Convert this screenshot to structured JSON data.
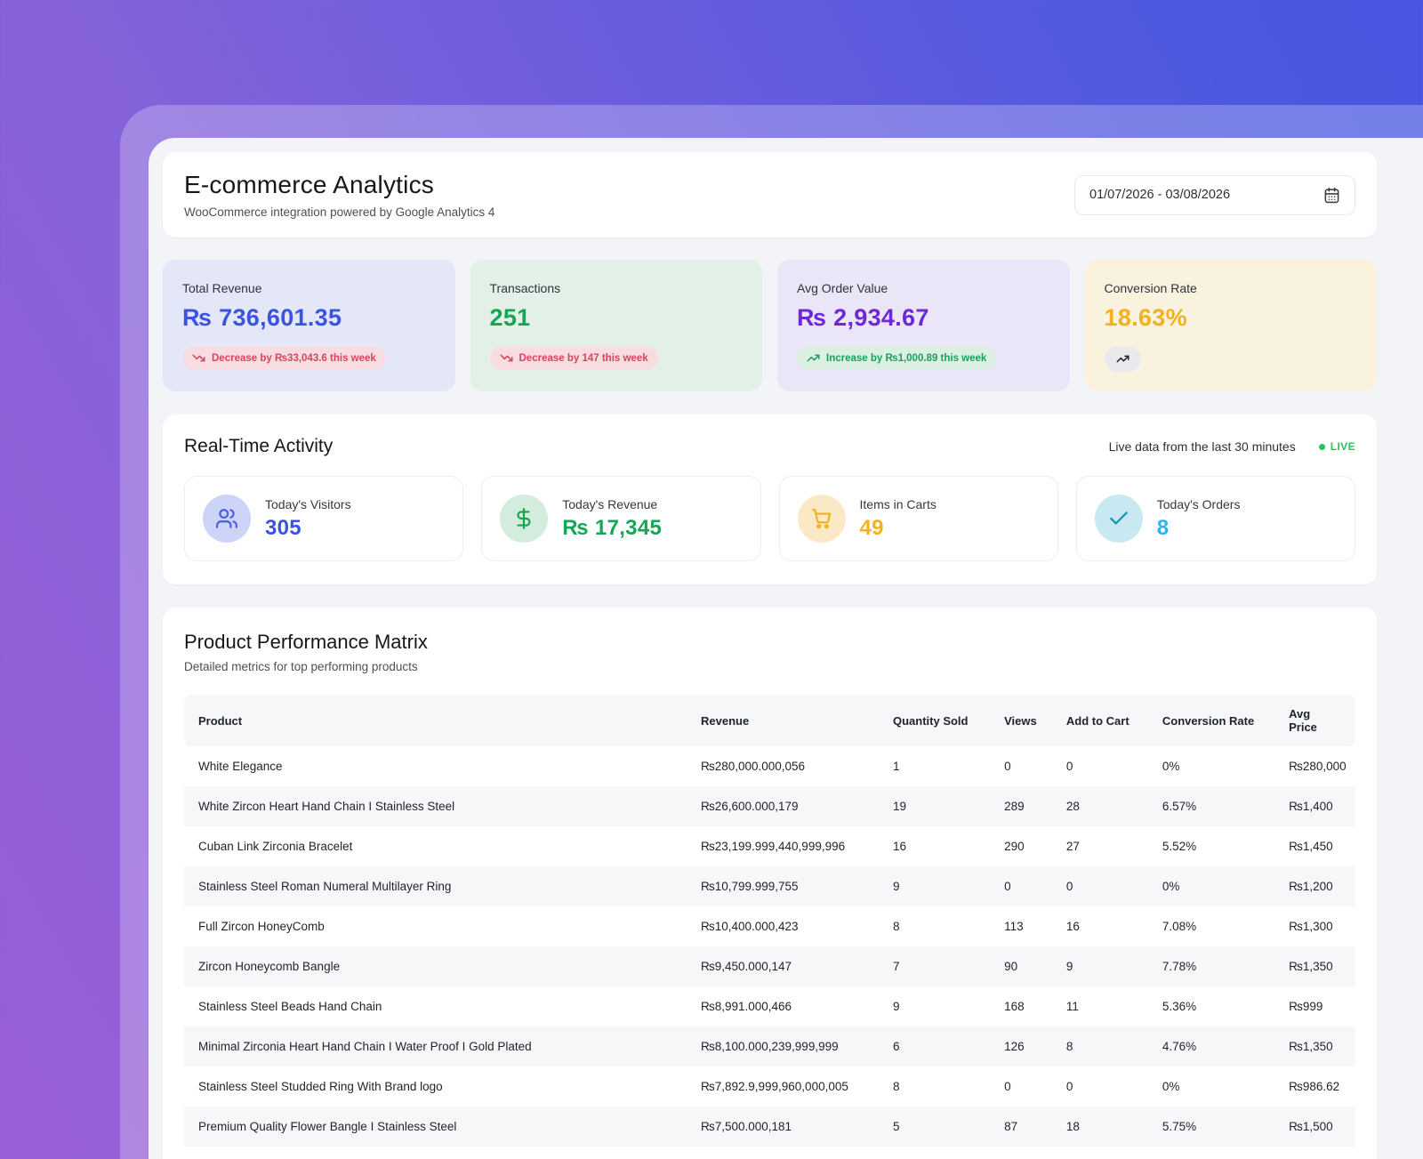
{
  "header": {
    "title": "E-commerce Analytics",
    "subtitle": "WooCommerce integration powered by Google Analytics 4",
    "date_range": "01/07/2026 - 03/08/2026"
  },
  "stats": [
    {
      "label": "Total Revenue",
      "value": "₨ 736,601.35",
      "value_color": "#3a53e3",
      "card_bg": "#e4e7f8",
      "badge": {
        "text": "Decrease by ₨33,043.6 this week",
        "direction": "down",
        "bg": "#f7dce2",
        "color": "#d5455a"
      }
    },
    {
      "label": "Transactions",
      "value": "251",
      "value_color": "#17a656",
      "card_bg": "#e2f0e8",
      "badge": {
        "text": "Decrease by 147 this week",
        "direction": "down",
        "bg": "#f7dce2",
        "color": "#d5455a"
      }
    },
    {
      "label": "Avg Order Value",
      "value": "₨ 2,934.67",
      "value_color": "#6d28d9",
      "card_bg": "#eae6f7",
      "badge": {
        "text": "Increase by ₨1,000.89 this week",
        "direction": "up",
        "bg": "#dbefe2",
        "color": "#1c9f5c"
      }
    },
    {
      "label": "Conversion Rate",
      "value": "18.63%",
      "value_color": "#f2b11d",
      "card_bg": "#f8f2de",
      "badge": {
        "text": "",
        "direction": "up",
        "bg": "#e9eaec",
        "color": "#1e2227"
      }
    }
  ],
  "realtime": {
    "title": "Real-Time Activity",
    "live_text": "Live data from the last 30 minutes",
    "live_badge": "LIVE",
    "live_color": "#22c55e",
    "cards": [
      {
        "label": "Today's Visitors",
        "value": "305",
        "icon": "users-icon",
        "icon_color": "#4a5de2",
        "circle_bg": "#ccd4f8",
        "value_color": "#3a53e3"
      },
      {
        "label": "Today's Revenue",
        "value": "₨ 17,345",
        "icon": "dollar-icon",
        "icon_color": "#17a34a",
        "circle_bg": "#d3ecde",
        "value_color": "#17a656"
      },
      {
        "label": "Items in Carts",
        "value": "49",
        "icon": "cart-icon",
        "icon_color": "#f2b11d",
        "circle_bg": "#fbe9c6",
        "value_color": "#f2b11d"
      },
      {
        "label": "Today's Orders",
        "value": "8",
        "icon": "check-icon",
        "icon_color": "#1b9aaa",
        "circle_bg": "#c9e9f2",
        "value_color": "#2fb5ea"
      }
    ]
  },
  "products": {
    "title": "Product Performance Matrix",
    "subtitle": "Detailed metrics for top performing products",
    "columns": [
      "Product",
      "Revenue",
      "Quantity Sold",
      "Views",
      "Add to Cart",
      "Conversion Rate",
      "Avg Price"
    ],
    "rows": [
      [
        "White Elegance",
        "₨280,000.000,056",
        "1",
        "0",
        "0",
        "0%",
        "₨280,000"
      ],
      [
        "White Zircon Heart Hand Chain I Stainless Steel",
        "₨26,600.000,179",
        "19",
        "289",
        "28",
        "6.57%",
        "₨1,400"
      ],
      [
        "Cuban Link Zirconia Bracelet",
        "₨23,199.999,440,999,996",
        "16",
        "290",
        "27",
        "5.52%",
        "₨1,450"
      ],
      [
        "Stainless Steel Roman Numeral Multilayer Ring",
        "₨10,799.999,755",
        "9",
        "0",
        "0",
        "0%",
        "₨1,200"
      ],
      [
        "Full Zircon HoneyComb",
        "₨10,400.000,423",
        "8",
        "113",
        "16",
        "7.08%",
        "₨1,300"
      ],
      [
        "Zircon Honeycomb Bangle",
        "₨9,450.000,147",
        "7",
        "90",
        "9",
        "7.78%",
        "₨1,350"
      ],
      [
        "Stainless Steel Beads Hand Chain",
        "₨8,991.000,466",
        "9",
        "168",
        "11",
        "5.36%",
        "₨999"
      ],
      [
        "Minimal Zirconia Heart Hand Chain I Water Proof I Gold Plated",
        "₨8,100.000,239,999,999",
        "6",
        "126",
        "8",
        "4.76%",
        "₨1,350"
      ],
      [
        "Stainless Steel Studded Ring With Brand logo",
        "₨7,892.9,999,960,000,005",
        "8",
        "0",
        "0",
        "0%",
        "₨986.62"
      ],
      [
        "Premium Quality Flower Bangle I Stainless Steel",
        "₨7,500.000,181",
        "5",
        "87",
        "18",
        "5.75%",
        "₨1,500"
      ]
    ]
  }
}
